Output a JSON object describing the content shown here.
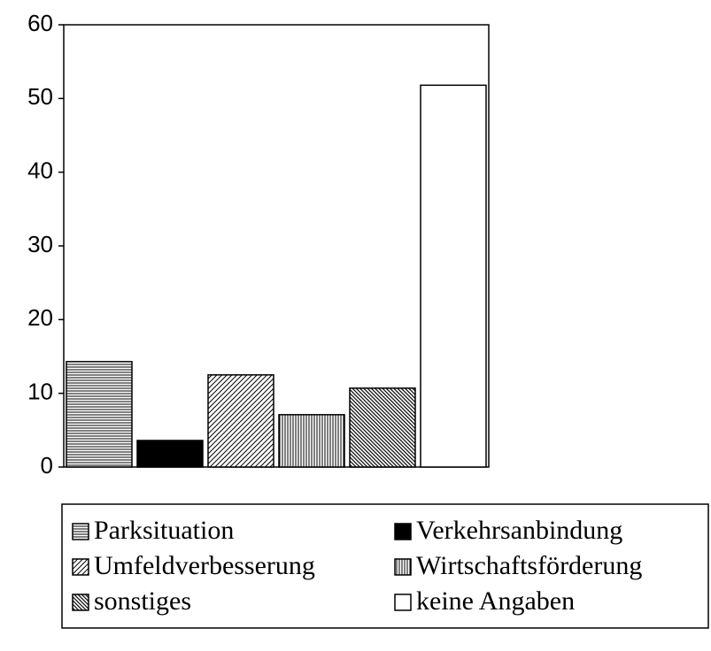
{
  "chart_data": {
    "type": "bar",
    "categories": [
      null
    ],
    "series": [
      {
        "name": "Parksituation",
        "color": "#000000",
        "pattern": "horizontal",
        "values": [
          14.3
        ]
      },
      {
        "name": "Verkehrsanbindung",
        "color": "#000000",
        "pattern": "solid",
        "values": [
          3.6
        ]
      },
      {
        "name": "Umfeldverbesserung",
        "color": "#000000",
        "pattern": "diagonal",
        "values": [
          12.5
        ]
      },
      {
        "name": "Wirtschaftsförderung",
        "color": "#000000",
        "pattern": "vertical",
        "values": [
          7.1
        ]
      },
      {
        "name": "sonstiges",
        "color": "#000000",
        "pattern": "diagonal-dense",
        "values": [
          10.7
        ]
      },
      {
        "name": "keine Angaben",
        "color": "#ffffff",
        "pattern": "solid",
        "values": [
          51.8
        ]
      }
    ],
    "ylim": [
      0,
      60
    ],
    "yticks": [
      0,
      10,
      20,
      30,
      40,
      50,
      60
    ],
    "grid": false
  }
}
